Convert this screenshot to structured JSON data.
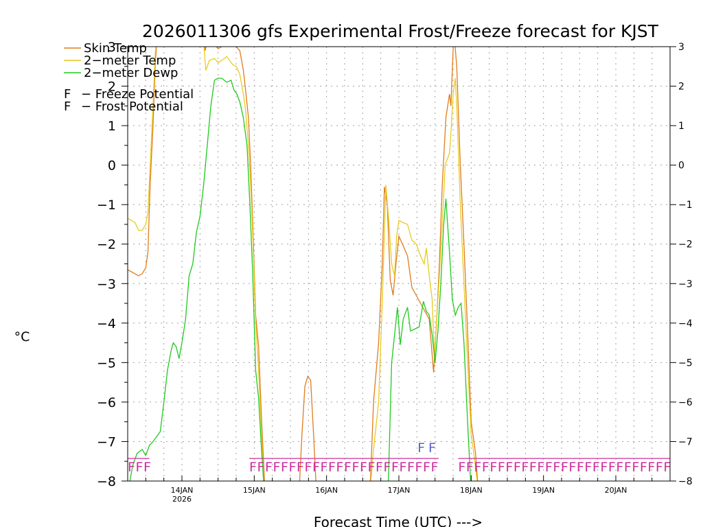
{
  "chart_data": {
    "type": "line",
    "title": "2026011306 gfs Experimental Frost/Freeze forecast for KJST",
    "xlabel": "Forecast Time (UTC) --->",
    "ylabel": "°C",
    "ylim": [
      -8,
      3
    ],
    "yticks": [
      -8,
      -7,
      -6,
      -5,
      -4,
      -3,
      -2,
      -1,
      0,
      1,
      2,
      3
    ],
    "ytick_labels": [
      "−8",
      "−7",
      "−6",
      "−5",
      "−4",
      "−3",
      "−2",
      "−1",
      "0",
      "1",
      "2",
      "3"
    ],
    "xlim": [
      13.25,
      20.75
    ],
    "xticks": [
      {
        "x": 14,
        "label": "14JAN",
        "sub": "2026"
      },
      {
        "x": 15,
        "label": "15JAN",
        "sub": ""
      },
      {
        "x": 16,
        "label": "16JAN",
        "sub": ""
      },
      {
        "x": 17,
        "label": "17JAN",
        "sub": ""
      },
      {
        "x": 18,
        "label": "18JAN",
        "sub": ""
      },
      {
        "x": 19,
        "label": "19JAN",
        "sub": ""
      },
      {
        "x": 20,
        "label": "20JAN",
        "sub": ""
      }
    ],
    "grid": true,
    "series": [
      {
        "name": "Skin Temp",
        "color": "#e07b1a",
        "points": [
          [
            13.25,
            -2.65
          ],
          [
            13.3,
            -2.7
          ],
          [
            13.35,
            -2.75
          ],
          [
            13.4,
            -2.8
          ],
          [
            13.45,
            -2.75
          ],
          [
            13.5,
            -2.6
          ],
          [
            13.53,
            -2.2
          ],
          [
            13.56,
            -0.5
          ],
          [
            13.6,
            1.0
          ],
          [
            13.63,
            2.5
          ],
          [
            13.66,
            3.4
          ],
          [
            14.0,
            3.4
          ],
          [
            14.3,
            3.3
          ],
          [
            14.32,
            2.9
          ],
          [
            14.35,
            3.1
          ],
          [
            14.4,
            3.0
          ],
          [
            14.45,
            3.05
          ],
          [
            14.5,
            2.95
          ],
          [
            14.6,
            3.05
          ],
          [
            14.7,
            3.1
          ],
          [
            14.75,
            3.0
          ],
          [
            14.8,
            2.9
          ],
          [
            14.85,
            2.4
          ],
          [
            14.88,
            1.9
          ],
          [
            14.92,
            1.2
          ],
          [
            14.95,
            0.0
          ],
          [
            14.98,
            -1.5
          ],
          [
            15.02,
            -3.8
          ],
          [
            15.06,
            -4.6
          ],
          [
            15.1,
            -6.4
          ],
          [
            15.15,
            -8.3
          ]
        ]
      },
      {
        "name": "Skin Temp",
        "color": "#e07b1a",
        "points": [
          [
            15.62,
            -8.3
          ],
          [
            15.66,
            -6.8
          ],
          [
            15.7,
            -5.6
          ],
          [
            15.74,
            -5.35
          ],
          [
            15.78,
            -5.45
          ],
          [
            15.82,
            -6.8
          ],
          [
            15.86,
            -8.3
          ]
        ]
      },
      {
        "name": "Skin Temp",
        "color": "#e07b1a",
        "points": [
          [
            16.6,
            -8.3
          ],
          [
            16.65,
            -6.0
          ],
          [
            16.72,
            -4.5
          ],
          [
            16.77,
            -2.5
          ],
          [
            16.8,
            -0.55
          ],
          [
            16.84,
            -1.0
          ],
          [
            16.88,
            -2.9
          ],
          [
            16.92,
            -3.3
          ],
          [
            16.96,
            -2.5
          ],
          [
            17.0,
            -1.8
          ],
          [
            17.05,
            -2.0
          ],
          [
            17.12,
            -2.3
          ],
          [
            17.18,
            -3.1
          ],
          [
            17.24,
            -3.3
          ],
          [
            17.3,
            -3.5
          ],
          [
            17.36,
            -3.7
          ],
          [
            17.42,
            -3.9
          ],
          [
            17.48,
            -5.25
          ],
          [
            17.52,
            -4.0
          ],
          [
            17.56,
            -2.5
          ],
          [
            17.6,
            -0.5
          ],
          [
            17.65,
            1.2
          ],
          [
            17.7,
            1.8
          ],
          [
            17.72,
            1.5
          ],
          [
            17.76,
            3.4
          ],
          [
            17.8,
            2.5
          ],
          [
            17.85,
            0.0
          ],
          [
            17.9,
            -2.0
          ],
          [
            17.95,
            -4.2
          ],
          [
            18.0,
            -6.5
          ],
          [
            18.06,
            -7.3
          ],
          [
            18.1,
            -8.3
          ]
        ]
      },
      {
        "name": "2-meter Temp",
        "color": "#e6cc1e",
        "points": [
          [
            13.25,
            -1.35
          ],
          [
            13.3,
            -1.4
          ],
          [
            13.35,
            -1.45
          ],
          [
            13.4,
            -1.65
          ],
          [
            13.45,
            -1.65
          ],
          [
            13.5,
            -1.5
          ],
          [
            13.53,
            -1.2
          ],
          [
            13.56,
            0.0
          ],
          [
            13.6,
            1.5
          ],
          [
            13.63,
            2.8
          ],
          [
            13.66,
            3.4
          ],
          [
            14.1,
            3.4
          ],
          [
            14.3,
            3.1
          ],
          [
            14.33,
            2.4
          ],
          [
            14.38,
            2.65
          ],
          [
            14.45,
            2.7
          ],
          [
            14.5,
            2.6
          ],
          [
            14.55,
            2.65
          ],
          [
            14.62,
            2.75
          ],
          [
            14.7,
            2.55
          ],
          [
            14.75,
            2.5
          ],
          [
            14.8,
            2.3
          ],
          [
            14.85,
            1.8
          ],
          [
            14.88,
            1.4
          ],
          [
            14.92,
            0.5
          ],
          [
            14.95,
            -0.5
          ],
          [
            14.98,
            -1.8
          ],
          [
            15.02,
            -4.0
          ],
          [
            15.06,
            -5.2
          ],
          [
            15.1,
            -6.8
          ],
          [
            15.14,
            -8.3
          ]
        ]
      },
      {
        "name": "2-meter Temp",
        "color": "#e6cc1e",
        "points": [
          [
            16.6,
            -8.3
          ],
          [
            16.65,
            -7.2
          ],
          [
            16.72,
            -6.0
          ],
          [
            16.77,
            -3.5
          ],
          [
            16.82,
            -0.5
          ],
          [
            16.86,
            -1.4
          ],
          [
            16.9,
            -2.5
          ],
          [
            16.94,
            -2.8
          ],
          [
            16.97,
            -1.8
          ],
          [
            17.0,
            -1.4
          ],
          [
            17.05,
            -1.45
          ],
          [
            17.12,
            -1.5
          ],
          [
            17.18,
            -1.9
          ],
          [
            17.24,
            -2.0
          ],
          [
            17.3,
            -2.3
          ],
          [
            17.35,
            -2.5
          ],
          [
            17.38,
            -2.1
          ],
          [
            17.42,
            -2.8
          ],
          [
            17.46,
            -3.4
          ],
          [
            17.49,
            -4.8
          ],
          [
            17.52,
            -4.0
          ],
          [
            17.56,
            -2.8
          ],
          [
            17.6,
            -1.5
          ],
          [
            17.64,
            0.0
          ],
          [
            17.7,
            0.3
          ],
          [
            17.72,
            0.8
          ],
          [
            17.75,
            1.8
          ],
          [
            17.78,
            2.2
          ],
          [
            17.8,
            1.5
          ],
          [
            17.85,
            -1.0
          ],
          [
            17.9,
            -3.0
          ],
          [
            17.95,
            -5.0
          ],
          [
            18.0,
            -6.8
          ],
          [
            18.05,
            -7.5
          ],
          [
            18.1,
            -8.3
          ]
        ]
      },
      {
        "name": "2-meter Dewp",
        "color": "#1fc91f",
        "points": [
          [
            13.25,
            -8.3
          ],
          [
            13.28,
            -8.0
          ],
          [
            13.32,
            -7.6
          ],
          [
            13.38,
            -7.3
          ],
          [
            13.45,
            -7.2
          ],
          [
            13.5,
            -7.35
          ],
          [
            13.55,
            -7.1
          ],
          [
            13.6,
            -7.0
          ],
          [
            13.7,
            -6.75
          ],
          [
            13.75,
            -6.0
          ],
          [
            13.8,
            -5.2
          ],
          [
            13.85,
            -4.7
          ],
          [
            13.88,
            -4.5
          ],
          [
            13.92,
            -4.6
          ],
          [
            13.96,
            -4.9
          ],
          [
            14.0,
            -4.5
          ],
          [
            14.05,
            -3.9
          ],
          [
            14.1,
            -2.8
          ],
          [
            14.15,
            -2.5
          ],
          [
            14.2,
            -1.7
          ],
          [
            14.25,
            -1.3
          ],
          [
            14.3,
            -0.5
          ],
          [
            14.35,
            0.5
          ],
          [
            14.4,
            1.5
          ],
          [
            14.45,
            2.15
          ],
          [
            14.5,
            2.2
          ],
          [
            14.55,
            2.2
          ],
          [
            14.62,
            2.1
          ],
          [
            14.68,
            2.15
          ],
          [
            14.72,
            1.9
          ],
          [
            14.76,
            1.8
          ],
          [
            14.8,
            1.6
          ],
          [
            14.85,
            1.2
          ],
          [
            14.9,
            0.5
          ],
          [
            14.94,
            -1.0
          ],
          [
            14.98,
            -2.8
          ],
          [
            15.02,
            -5.2
          ],
          [
            15.06,
            -5.9
          ],
          [
            15.1,
            -7.2
          ],
          [
            15.14,
            -8.3
          ]
        ]
      },
      {
        "name": "2-meter Dewp",
        "color": "#1fc91f",
        "points": [
          [
            16.85,
            -8.3
          ],
          [
            16.9,
            -5.0
          ],
          [
            16.94,
            -4.3
          ],
          [
            16.98,
            -3.6
          ],
          [
            17.02,
            -4.55
          ],
          [
            17.06,
            -3.9
          ],
          [
            17.12,
            -3.6
          ],
          [
            17.16,
            -4.2
          ],
          [
            17.22,
            -4.15
          ],
          [
            17.28,
            -4.1
          ],
          [
            17.34,
            -3.45
          ],
          [
            17.38,
            -3.7
          ],
          [
            17.42,
            -3.8
          ],
          [
            17.46,
            -4.3
          ],
          [
            17.5,
            -5.0
          ],
          [
            17.54,
            -4.2
          ],
          [
            17.58,
            -3.0
          ],
          [
            17.62,
            -1.5
          ],
          [
            17.65,
            -0.85
          ],
          [
            17.7,
            -2.2
          ],
          [
            17.74,
            -3.4
          ],
          [
            17.78,
            -3.8
          ],
          [
            17.82,
            -3.6
          ],
          [
            17.86,
            -3.5
          ],
          [
            17.9,
            -4.5
          ],
          [
            17.95,
            -6.5
          ],
          [
            18.0,
            -8.3
          ]
        ]
      }
    ],
    "legend": [
      {
        "label": "Skin Temp",
        "color": "#e07b1a"
      },
      {
        "label": "2−meter Temp",
        "color": "#e6cc1e"
      },
      {
        "label": "2−meter Dewp",
        "color": "#1fc91f"
      }
    ],
    "flag_legend": [
      {
        "glyph": "F",
        "glyph_color": "#cc2f9c",
        "label": "− Freeze Potential"
      },
      {
        "glyph": "F",
        "glyph_color": "#5864c8",
        "label": "− Frost Potential"
      }
    ],
    "freeze_potential": {
      "glyph": "F",
      "color": "#cc2f9c",
      "level": -7.55,
      "x_ranges": [
        [
          13.25,
          13.55
        ],
        [
          14.93,
          17.55
        ],
        [
          17.82,
          20.75
        ]
      ]
    },
    "frost_potential": {
      "glyph": "F",
      "color": "#5864c8",
      "level": -7.15,
      "x_points": [
        17.31,
        17.46
      ]
    }
  }
}
